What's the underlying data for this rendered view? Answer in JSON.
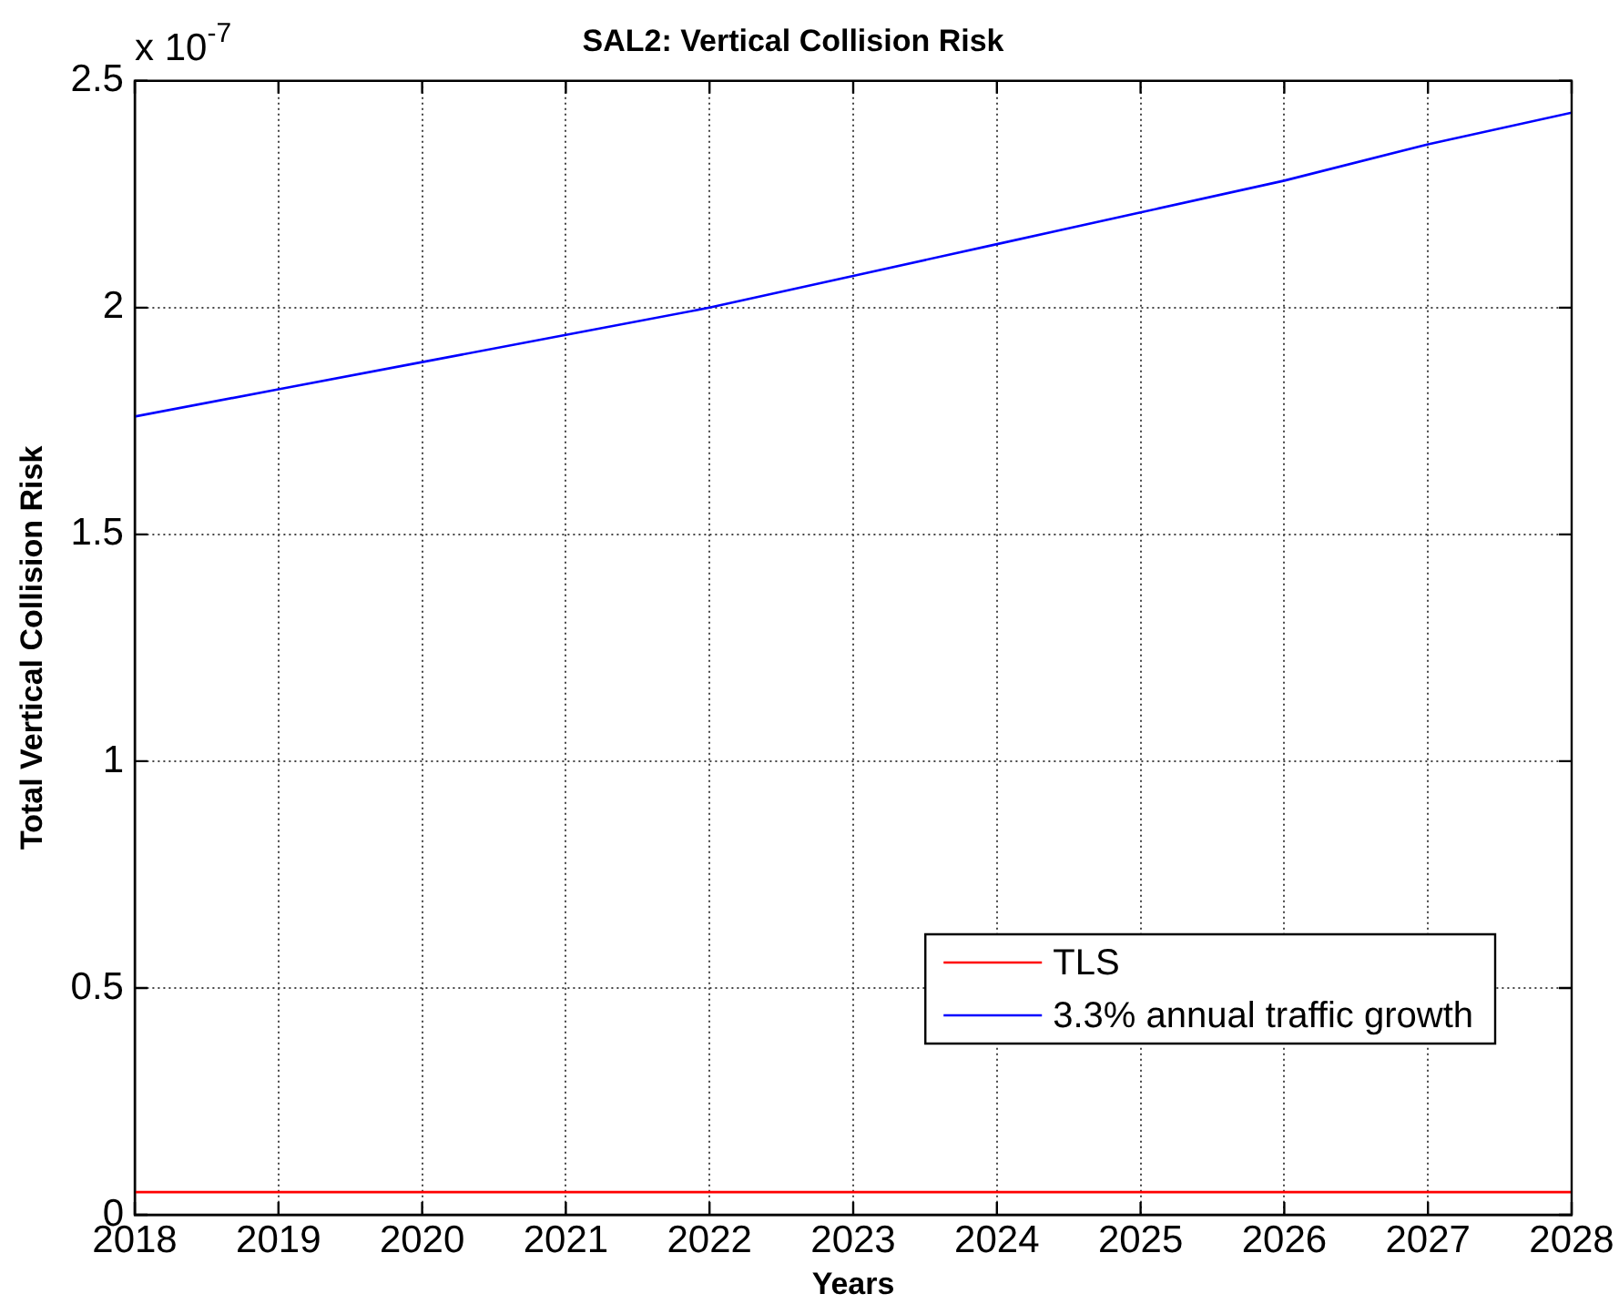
{
  "chart_data": {
    "type": "line",
    "title": "SAL2: Vertical Collision Risk",
    "xlabel": "Years",
    "ylabel": "Total Vertical Collision Risk",
    "annotations": [
      "x 10$^{-7}$"
    ],
    "series": [
      {
        "name": "TLS",
        "color": "#ff0000",
        "x": [
          2018,
          2028
        ],
        "values": [
          0.05,
          0.05
        ]
      },
      {
        "name": "3.3% annual traffic growth",
        "color": "#0000ff",
        "x": [
          2018,
          2019,
          2020,
          2021,
          2022,
          2023,
          2024,
          2025,
          2026,
          2027,
          2028
        ],
        "values": [
          1.76,
          1.82,
          1.88,
          1.94,
          2.0,
          2.07,
          2.14,
          2.21,
          2.28,
          2.36,
          2.43
        ]
      }
    ],
    "xlim": [
      2018,
      2028
    ],
    "xticks": [
      2018,
      2019,
      2020,
      2021,
      2022,
      2023,
      2024,
      2025,
      2026,
      2027,
      2028
    ],
    "ylim": [
      0,
      2.5
    ],
    "yticks": [
      0,
      0.5,
      1,
      1.5,
      2,
      2.5
    ],
    "grid": true,
    "legend": "bottom right",
    "marker": "none",
    "line_style": "solid"
  }
}
